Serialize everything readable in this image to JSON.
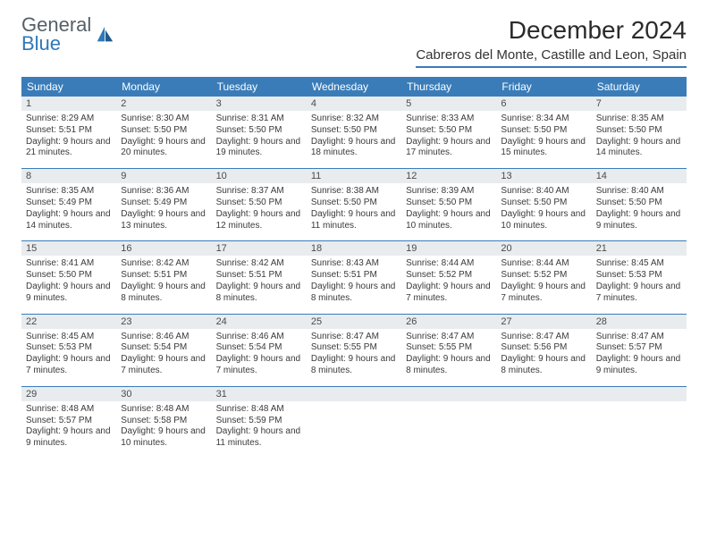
{
  "logo": {
    "line1": "General",
    "line2": "Blue"
  },
  "title": "December 2024",
  "location": "Cabreros del Monte, Castille and Leon, Spain",
  "colors": {
    "accent": "#3a7cb8",
    "header_bg": "#3a7cb8",
    "header_fg": "#ffffff",
    "daynum_bg": "#e9ecef",
    "body_bg": "#ffffff",
    "text": "#333333",
    "logo_gray": "#555f68",
    "logo_blue": "#2f78b7"
  },
  "typography": {
    "title_fontsize": 28,
    "subtitle_fontsize": 15,
    "weekday_fontsize": 12,
    "daynum_fontsize": 11,
    "body_fontsize": 10,
    "font_family": "Arial"
  },
  "layout": {
    "columns": 7,
    "rows": 5,
    "first_weekday": "Sunday"
  },
  "weekdays": [
    "Sunday",
    "Monday",
    "Tuesday",
    "Wednesday",
    "Thursday",
    "Friday",
    "Saturday"
  ],
  "days": [
    {
      "n": "1",
      "sunrise": "8:29 AM",
      "sunset": "5:51 PM",
      "daylight": "9 hours and 21 minutes."
    },
    {
      "n": "2",
      "sunrise": "8:30 AM",
      "sunset": "5:50 PM",
      "daylight": "9 hours and 20 minutes."
    },
    {
      "n": "3",
      "sunrise": "8:31 AM",
      "sunset": "5:50 PM",
      "daylight": "9 hours and 19 minutes."
    },
    {
      "n": "4",
      "sunrise": "8:32 AM",
      "sunset": "5:50 PM",
      "daylight": "9 hours and 18 minutes."
    },
    {
      "n": "5",
      "sunrise": "8:33 AM",
      "sunset": "5:50 PM",
      "daylight": "9 hours and 17 minutes."
    },
    {
      "n": "6",
      "sunrise": "8:34 AM",
      "sunset": "5:50 PM",
      "daylight": "9 hours and 15 minutes."
    },
    {
      "n": "7",
      "sunrise": "8:35 AM",
      "sunset": "5:50 PM",
      "daylight": "9 hours and 14 minutes."
    },
    {
      "n": "8",
      "sunrise": "8:35 AM",
      "sunset": "5:49 PM",
      "daylight": "9 hours and 14 minutes."
    },
    {
      "n": "9",
      "sunrise": "8:36 AM",
      "sunset": "5:49 PM",
      "daylight": "9 hours and 13 minutes."
    },
    {
      "n": "10",
      "sunrise": "8:37 AM",
      "sunset": "5:50 PM",
      "daylight": "9 hours and 12 minutes."
    },
    {
      "n": "11",
      "sunrise": "8:38 AM",
      "sunset": "5:50 PM",
      "daylight": "9 hours and 11 minutes."
    },
    {
      "n": "12",
      "sunrise": "8:39 AM",
      "sunset": "5:50 PM",
      "daylight": "9 hours and 10 minutes."
    },
    {
      "n": "13",
      "sunrise": "8:40 AM",
      "sunset": "5:50 PM",
      "daylight": "9 hours and 10 minutes."
    },
    {
      "n": "14",
      "sunrise": "8:40 AM",
      "sunset": "5:50 PM",
      "daylight": "9 hours and 9 minutes."
    },
    {
      "n": "15",
      "sunrise": "8:41 AM",
      "sunset": "5:50 PM",
      "daylight": "9 hours and 9 minutes."
    },
    {
      "n": "16",
      "sunrise": "8:42 AM",
      "sunset": "5:51 PM",
      "daylight": "9 hours and 8 minutes."
    },
    {
      "n": "17",
      "sunrise": "8:42 AM",
      "sunset": "5:51 PM",
      "daylight": "9 hours and 8 minutes."
    },
    {
      "n": "18",
      "sunrise": "8:43 AM",
      "sunset": "5:51 PM",
      "daylight": "9 hours and 8 minutes."
    },
    {
      "n": "19",
      "sunrise": "8:44 AM",
      "sunset": "5:52 PM",
      "daylight": "9 hours and 7 minutes."
    },
    {
      "n": "20",
      "sunrise": "8:44 AM",
      "sunset": "5:52 PM",
      "daylight": "9 hours and 7 minutes."
    },
    {
      "n": "21",
      "sunrise": "8:45 AM",
      "sunset": "5:53 PM",
      "daylight": "9 hours and 7 minutes."
    },
    {
      "n": "22",
      "sunrise": "8:45 AM",
      "sunset": "5:53 PM",
      "daylight": "9 hours and 7 minutes."
    },
    {
      "n": "23",
      "sunrise": "8:46 AM",
      "sunset": "5:54 PM",
      "daylight": "9 hours and 7 minutes."
    },
    {
      "n": "24",
      "sunrise": "8:46 AM",
      "sunset": "5:54 PM",
      "daylight": "9 hours and 7 minutes."
    },
    {
      "n": "25",
      "sunrise": "8:47 AM",
      "sunset": "5:55 PM",
      "daylight": "9 hours and 8 minutes."
    },
    {
      "n": "26",
      "sunrise": "8:47 AM",
      "sunset": "5:55 PM",
      "daylight": "9 hours and 8 minutes."
    },
    {
      "n": "27",
      "sunrise": "8:47 AM",
      "sunset": "5:56 PM",
      "daylight": "9 hours and 8 minutes."
    },
    {
      "n": "28",
      "sunrise": "8:47 AM",
      "sunset": "5:57 PM",
      "daylight": "9 hours and 9 minutes."
    },
    {
      "n": "29",
      "sunrise": "8:48 AM",
      "sunset": "5:57 PM",
      "daylight": "9 hours and 9 minutes."
    },
    {
      "n": "30",
      "sunrise": "8:48 AM",
      "sunset": "5:58 PM",
      "daylight": "9 hours and 10 minutes."
    },
    {
      "n": "31",
      "sunrise": "8:48 AM",
      "sunset": "5:59 PM",
      "daylight": "9 hours and 11 minutes."
    }
  ],
  "labels": {
    "sunrise": "Sunrise:",
    "sunset": "Sunset:",
    "daylight": "Daylight:"
  }
}
